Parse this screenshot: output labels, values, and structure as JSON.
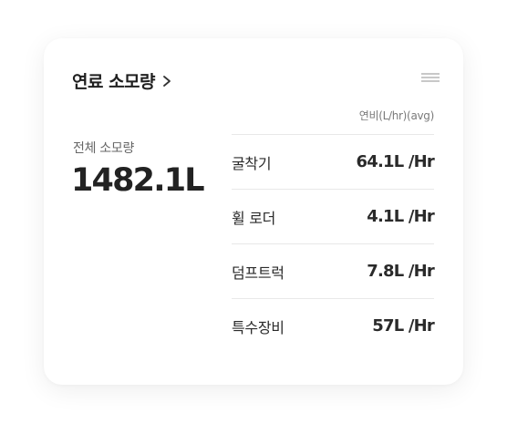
{
  "card": {
    "title": "연료 소모량",
    "header_icon": "chevron-right-icon",
    "menu_icon": "menu-icon"
  },
  "total": {
    "label": "전체 소모량",
    "value": "1482.1L"
  },
  "table": {
    "unit_caption": "연비(L/hr)(avg)",
    "rows": [
      {
        "name": "굴착기",
        "value": "64.1L /Hr"
      },
      {
        "name": "휠 로더",
        "value": "4.1L /Hr"
      },
      {
        "name": "덤프트럭",
        "value": "7.8L /Hr"
      },
      {
        "name": "특수장비",
        "value": "57L /Hr"
      }
    ]
  },
  "colors": {
    "background": "#ffffff",
    "text_primary": "#222222",
    "text_secondary": "#666666",
    "divider": "#e8e8e8",
    "menu_icon": "#c8c8c8"
  }
}
